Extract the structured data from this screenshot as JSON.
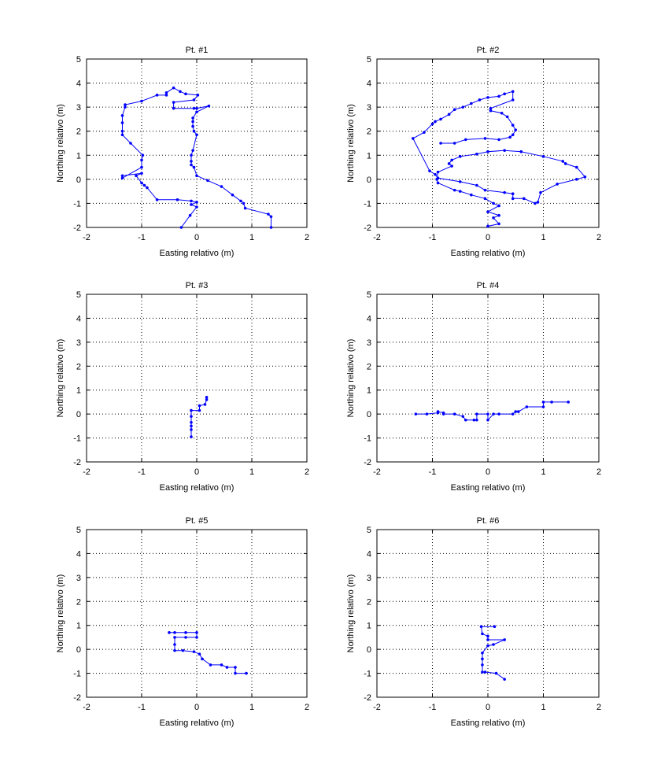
{
  "chart_data": [
    {
      "type": "line",
      "title": "Pt. #1",
      "xlabel": "Easting relativo (m)",
      "ylabel": "Northing relativo (m)",
      "xlim": [
        -2,
        2
      ],
      "ylim": [
        -2,
        5
      ],
      "xticks": [
        "-2",
        "-1",
        "0",
        "1",
        "2"
      ],
      "yticks": [
        "-2",
        "-1",
        "0",
        "1",
        "2",
        "3",
        "4",
        "5"
      ],
      "grid": true,
      "color": "#0000ff",
      "x": [
        -0.28,
        -0.12,
        0.0,
        -0.1,
        0.0,
        -0.1,
        -0.35,
        -0.72,
        -0.9,
        -0.95,
        -1.0,
        -1.1,
        -1.0,
        -1.35,
        -1.35,
        -1.0,
        -1.0,
        -0.98,
        -1.2,
        -1.35,
        -1.35,
        -1.35,
        -1.35,
        -1.3,
        -1.3,
        -1.0,
        -0.72,
        -0.55,
        -0.55,
        -0.42,
        -0.3,
        -0.2,
        0.02,
        -0.05,
        -0.42,
        -0.42,
        -0.05,
        0.0,
        0.22,
        0.0,
        -0.07,
        -0.07,
        -0.07,
        -0.05,
        0.0,
        -0.07,
        -0.1,
        -0.1,
        -0.1,
        -0.05,
        0.0,
        0.2,
        0.45,
        0.65,
        0.8,
        0.85,
        0.88,
        1.3,
        1.35,
        1.35
      ],
      "y": [
        -2.0,
        -1.5,
        -1.15,
        -1.05,
        -0.95,
        -0.9,
        -0.85,
        -0.85,
        -0.35,
        -0.25,
        -0.15,
        0.15,
        0.25,
        0.15,
        0.05,
        0.5,
        0.8,
        1.0,
        1.5,
        1.85,
        2.0,
        2.35,
        2.65,
        3.0,
        3.1,
        3.25,
        3.5,
        3.5,
        3.6,
        3.8,
        3.65,
        3.55,
        3.5,
        3.3,
        3.2,
        2.95,
        2.95,
        2.95,
        3.05,
        2.8,
        2.55,
        2.4,
        2.2,
        2.0,
        1.85,
        1.2,
        1.0,
        0.75,
        0.6,
        0.5,
        0.15,
        -0.05,
        -0.3,
        -0.65,
        -0.9,
        -1.0,
        -1.2,
        -1.45,
        -1.55,
        -2.0
      ]
    },
    {
      "type": "line",
      "title": "Pt. #2",
      "xlabel": "Easting relativo (m)",
      "ylabel": "Northing relativo (m)",
      "xlim": [
        -2,
        2
      ],
      "ylim": [
        -2,
        5
      ],
      "xticks": [
        "-2",
        "-1",
        "0",
        "1",
        "2"
      ],
      "yticks": [
        "-2",
        "-1",
        "0",
        "1",
        "2",
        "3",
        "4",
        "5"
      ],
      "grid": true,
      "color": "#0000ff",
      "x": [
        0.0,
        0.2,
        0.1,
        0.2,
        0.0,
        0.2,
        0.1,
        -0.05,
        -0.3,
        -0.5,
        -0.6,
        -0.9,
        -0.92,
        -0.9,
        -0.65,
        -0.7,
        -0.65,
        -0.5,
        -0.2,
        0.0,
        0.3,
        0.6,
        1.0,
        1.35,
        1.4,
        1.6,
        1.75,
        1.6,
        1.25,
        0.95,
        0.9,
        0.85,
        0.65,
        0.45,
        0.45,
        0.3,
        -0.05,
        -0.2,
        -0.5,
        -0.9,
        -0.95,
        -1.05,
        -1.35,
        -1.15,
        -1.0,
        -0.95,
        -0.85,
        -0.7,
        -0.6,
        -0.45,
        -0.3,
        -0.15,
        0.0,
        0.2,
        0.3,
        0.45,
        0.45,
        0.05,
        0.05,
        0.25,
        0.35,
        0.45,
        0.5,
        0.45,
        0.4,
        0.2,
        -0.05,
        -0.4,
        -0.6,
        -0.85
      ],
      "y": [
        -1.95,
        -1.85,
        -1.6,
        -1.5,
        -1.35,
        -1.1,
        -1.0,
        -0.8,
        -0.65,
        -0.5,
        -0.45,
        -0.15,
        0.0,
        0.3,
        0.55,
        0.65,
        0.8,
        0.95,
        1.05,
        1.15,
        1.2,
        1.15,
        0.95,
        0.75,
        0.65,
        0.5,
        0.1,
        0.0,
        -0.2,
        -0.55,
        -0.95,
        -1.0,
        -0.8,
        -0.8,
        -0.6,
        -0.55,
        -0.45,
        -0.25,
        -0.1,
        0.05,
        0.2,
        0.35,
        1.7,
        1.95,
        2.3,
        2.4,
        2.5,
        2.7,
        2.9,
        3.0,
        3.15,
        3.3,
        3.4,
        3.45,
        3.55,
        3.65,
        3.3,
        2.95,
        2.85,
        2.75,
        2.6,
        2.25,
        2.05,
        1.85,
        1.75,
        1.65,
        1.7,
        1.65,
        1.5,
        1.5
      ]
    },
    {
      "type": "line",
      "title": "Pt. #3",
      "xlabel": "Easting relativo (m)",
      "ylabel": "Northing relativo (m)",
      "xlim": [
        -2,
        2
      ],
      "ylim": [
        -2,
        5
      ],
      "xticks": [
        "-2",
        "-1",
        "0",
        "1",
        "2"
      ],
      "yticks": [
        "-2",
        "-1",
        "0",
        "1",
        "2",
        "3",
        "4",
        "5"
      ],
      "grid": true,
      "color": "#0000ff",
      "x": [
        0.18,
        0.18,
        0.15,
        0.05,
        0.05,
        -0.1,
        -0.1,
        -0.1,
        -0.1,
        -0.1,
        -0.1
      ],
      "y": [
        0.7,
        0.6,
        0.4,
        0.35,
        0.15,
        0.15,
        -0.1,
        -0.35,
        -0.5,
        -0.65,
        -0.95
      ]
    },
    {
      "type": "line",
      "title": "Pt. #4",
      "xlabel": "Easting relativo (m)",
      "ylabel": "Northing relativo (m)",
      "xlim": [
        -2,
        2
      ],
      "ylim": [
        -2,
        5
      ],
      "xticks": [
        "-2",
        "-1",
        "0",
        "1",
        "2"
      ],
      "yticks": [
        "-2",
        "-1",
        "0",
        "1",
        "2",
        "3",
        "4",
        "5"
      ],
      "grid": true,
      "color": "#0000ff",
      "x": [
        -1.3,
        -1.1,
        -0.9,
        -0.9,
        -0.8,
        -0.8,
        -0.6,
        -0.45,
        -0.4,
        -0.25,
        -0.2,
        -0.2,
        0.0,
        0.0,
        0.1,
        0.2,
        0.45,
        0.5,
        0.55,
        0.7,
        1.0,
        1.0,
        1.15,
        1.45
      ],
      "y": [
        0.0,
        0.0,
        0.05,
        0.1,
        0.05,
        0.0,
        0.0,
        -0.1,
        -0.25,
        -0.25,
        -0.25,
        0.0,
        0.0,
        -0.25,
        0.0,
        0.0,
        0.0,
        0.1,
        0.1,
        0.3,
        0.3,
        0.5,
        0.5,
        0.5
      ]
    },
    {
      "type": "line",
      "title": "Pt. #5",
      "xlabel": "Easting relativo (m)",
      "ylabel": "Northing relativo (m)",
      "xlim": [
        -2,
        2
      ],
      "ylim": [
        -2,
        5
      ],
      "xticks": [
        "-2",
        "-1",
        "0",
        "1",
        "2"
      ],
      "yticks": [
        "-2",
        "-1",
        "0",
        "1",
        "2",
        "3",
        "4",
        "5"
      ],
      "grid": true,
      "color": "#0000ff",
      "x": [
        -0.5,
        -0.4,
        -0.2,
        0.0,
        0.0,
        -0.2,
        -0.4,
        -0.4,
        -0.4,
        -0.25,
        -0.05,
        0.05,
        0.1,
        0.25,
        0.45,
        0.55,
        0.7,
        0.7,
        0.9
      ],
      "y": [
        0.7,
        0.7,
        0.7,
        0.7,
        0.5,
        0.5,
        0.5,
        0.2,
        -0.05,
        -0.05,
        -0.1,
        -0.2,
        -0.4,
        -0.65,
        -0.65,
        -0.75,
        -0.75,
        -1.0,
        -1.0
      ]
    },
    {
      "type": "line",
      "title": "Pt. #6",
      "xlabel": "Easting relativo (m)",
      "ylabel": "Northing relativo (m)",
      "xlim": [
        -2,
        2
      ],
      "ylim": [
        -2,
        5
      ],
      "xticks": [
        "-2",
        "-1",
        "0",
        "1",
        "2"
      ],
      "yticks": [
        "-2",
        "-1",
        "0",
        "1",
        "2",
        "3",
        "4",
        "5"
      ],
      "grid": true,
      "color": "#0000ff",
      "x": [
        0.12,
        -0.12,
        -0.1,
        0.0,
        0.0,
        0.3,
        0.1,
        0.0,
        -0.1,
        -0.1,
        -0.1,
        -0.1,
        -0.05,
        0.15,
        0.3
      ],
      "y": [
        0.95,
        0.95,
        0.65,
        0.55,
        0.4,
        0.4,
        0.2,
        0.15,
        -0.15,
        -0.4,
        -0.65,
        -0.95,
        -0.95,
        -1.0,
        -1.25
      ]
    }
  ]
}
